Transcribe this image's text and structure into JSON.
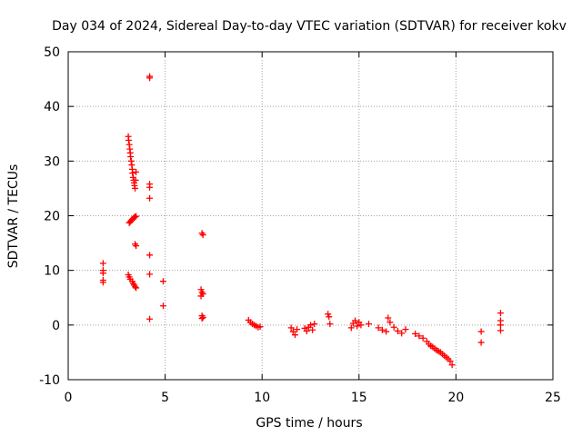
{
  "chart_data": {
    "type": "scatter",
    "title": "Day 034 of 2024, Sidereal Day-to-day VTEC variation (SDTVAR) for receiver kokv",
    "xlabel": "GPS time / hours",
    "ylabel": "SDTVAR / TECUs",
    "xlim": [
      0,
      25
    ],
    "ylim": [
      -10,
      50
    ],
    "xticks": [
      0,
      5,
      10,
      15,
      20,
      25
    ],
    "yticks": [
      -10,
      0,
      10,
      20,
      30,
      40,
      50
    ],
    "grid": true,
    "marker": "plus",
    "color": "#ff0000",
    "series": [
      {
        "name": "SDTVAR",
        "x": [
          1.8,
          1.8,
          1.8,
          1.8,
          1.8,
          3.1,
          3.12,
          3.15,
          3.18,
          3.2,
          3.22,
          3.25,
          3.28,
          3.3,
          3.32,
          3.35,
          3.38,
          3.4,
          3.42,
          3.45,
          3.48,
          3.5,
          3.15,
          3.2,
          3.25,
          3.3,
          3.35,
          3.4,
          3.45,
          3.5,
          3.1,
          3.15,
          3.2,
          3.3,
          3.35,
          3.4,
          3.45,
          3.5,
          3.45,
          3.5,
          4.2,
          4.2,
          4.2,
          4.2,
          4.2,
          4.2,
          4.2,
          4.2,
          4.9,
          4.9,
          6.9,
          6.95,
          6.85,
          6.9,
          6.95,
          6.85,
          6.9,
          6.95,
          6.9,
          9.3,
          9.4,
          9.5,
          9.6,
          9.7,
          9.8,
          9.9,
          11.5,
          11.6,
          11.7,
          11.8,
          12.2,
          12.3,
          12.4,
          12.5,
          12.6,
          12.7,
          13.4,
          13.45,
          13.5,
          14.6,
          14.7,
          14.8,
          14.9,
          15.0,
          15.1,
          15.5,
          16.0,
          16.2,
          16.4,
          16.5,
          16.6,
          16.8,
          17.0,
          17.2,
          17.4,
          17.9,
          18.1,
          18.3,
          18.5,
          18.6,
          18.7,
          18.8,
          18.9,
          19.0,
          19.1,
          19.2,
          19.3,
          19.4,
          19.5,
          19.6,
          19.7,
          19.8,
          21.3,
          21.3,
          22.3,
          22.3,
          22.3,
          22.3
        ],
        "y": [
          11.3,
          10.0,
          9.5,
          8.2,
          7.8,
          34.5,
          33.8,
          33.0,
          32.2,
          31.5,
          30.8,
          30.0,
          29.3,
          28.5,
          27.8,
          27.0,
          26.5,
          26.0,
          25.5,
          25.0,
          26.5,
          28.0,
          18.7,
          18.9,
          19.1,
          19.3,
          19.5,
          19.7,
          19.8,
          19.9,
          9.2,
          8.8,
          8.4,
          8.0,
          7.6,
          7.3,
          7.0,
          6.8,
          14.8,
          14.5,
          45.5,
          45.2,
          25.8,
          25.2,
          23.2,
          12.8,
          9.3,
          1.1,
          8.0,
          3.5,
          16.8,
          16.5,
          6.5,
          6.0,
          5.7,
          5.3,
          1.7,
          1.4,
          1.2,
          0.9,
          0.5,
          0.2,
          0.0,
          -0.2,
          -0.4,
          -0.3,
          -0.5,
          -1.2,
          -1.8,
          -0.8,
          -0.6,
          -1.1,
          -0.4,
          0.0,
          -0.9,
          0.2,
          2.0,
          1.5,
          0.2,
          -0.5,
          0.3,
          0.8,
          -0.2,
          0.5,
          0.0,
          0.2,
          -0.5,
          -0.9,
          -1.2,
          1.3,
          0.5,
          -0.4,
          -1.1,
          -1.5,
          -0.8,
          -1.6,
          -2.0,
          -2.4,
          -3.0,
          -3.5,
          -3.8,
          -4.0,
          -4.3,
          -4.6,
          -4.8,
          -5.0,
          -5.3,
          -5.6,
          -5.9,
          -6.2,
          -6.6,
          -7.3,
          -1.2,
          -3.2,
          2.2,
          0.8,
          0.0,
          -1.0
        ]
      }
    ]
  }
}
